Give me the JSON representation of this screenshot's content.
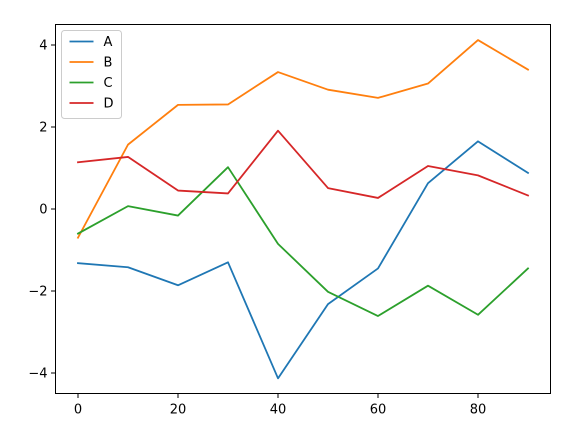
{
  "chart_data": {
    "type": "line",
    "x": [
      0,
      10,
      20,
      30,
      40,
      50,
      60,
      70,
      80,
      90
    ],
    "series": [
      {
        "name": "A",
        "color": "#1f77b4",
        "values": [
          -1.32,
          -1.42,
          -1.86,
          -1.3,
          -4.13,
          -2.32,
          -1.45,
          0.63,
          1.65,
          0.88
        ]
      },
      {
        "name": "B",
        "color": "#ff7f0e",
        "values": [
          -0.7,
          1.57,
          2.54,
          2.55,
          3.34,
          2.91,
          2.71,
          3.06,
          4.12,
          3.4
        ]
      },
      {
        "name": "C",
        "color": "#2ca02c",
        "values": [
          -0.6,
          0.07,
          -0.16,
          1.02,
          -0.85,
          -2.02,
          -2.61,
          -1.87,
          -2.58,
          -1.45
        ]
      },
      {
        "name": "D",
        "color": "#d62728",
        "values": [
          1.14,
          1.27,
          0.45,
          0.38,
          1.91,
          0.51,
          0.27,
          1.05,
          0.82,
          0.33
        ]
      }
    ],
    "xlim": [
      -4.5,
      94.5
    ],
    "ylim": [
      -4.5,
      4.5
    ],
    "xticks": [
      0,
      20,
      40,
      60,
      80
    ],
    "yticks": [
      -4,
      -2,
      0,
      2,
      4
    ],
    "xtick_labels": [
      "0",
      "20",
      "40",
      "60",
      "80"
    ],
    "ytick_labels": [
      "−4",
      "−2",
      "0",
      "2",
      "4"
    ],
    "title": "",
    "xlabel": "",
    "ylabel": "",
    "grid": false,
    "legend": "top-left"
  }
}
